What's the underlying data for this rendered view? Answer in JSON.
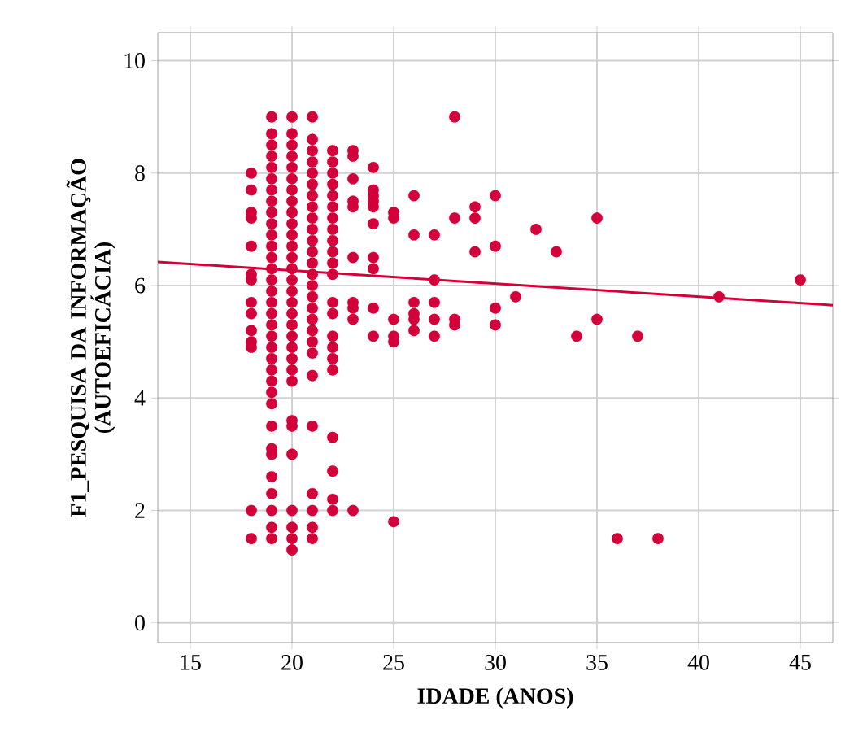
{
  "chart_data": {
    "type": "scatter",
    "xlabel": "IDADE (ANOS)",
    "ylabel": "F1_PESQUISA DA INFORMAÇÃO (AUTOEFICÁCIA)",
    "xlim": [
      13.4,
      46.6
    ],
    "ylim": [
      -0.35,
      10.5
    ],
    "xticks": [
      15,
      20,
      25,
      30,
      35,
      40,
      45
    ],
    "yticks": [
      0,
      2,
      4,
      6,
      8,
      10
    ],
    "grid": true,
    "series": [
      {
        "color": "#d4003a",
        "marker": "circle",
        "x": [
          18,
          18,
          18,
          18,
          18,
          18,
          18,
          18,
          18,
          18,
          18,
          18,
          18,
          18,
          19,
          19,
          19,
          19,
          19,
          19,
          19,
          19,
          19,
          19,
          19,
          19,
          19,
          19,
          19,
          19,
          19,
          19,
          19,
          19,
          19,
          19,
          19,
          19,
          19,
          19,
          19,
          19,
          19,
          19,
          19,
          19,
          19,
          19,
          20,
          20,
          20,
          20,
          20,
          20,
          20,
          20,
          20,
          20,
          20,
          20,
          20,
          20,
          20,
          20,
          20,
          20,
          20,
          20,
          20,
          20,
          20,
          20,
          20,
          20,
          20,
          20,
          20,
          20,
          20,
          21,
          21,
          21,
          21,
          21,
          21,
          21,
          21,
          21,
          21,
          21,
          21,
          21,
          21,
          21,
          21,
          21,
          21,
          21,
          21,
          21,
          21,
          21,
          21,
          21,
          21,
          21,
          22,
          22,
          22,
          22,
          22,
          22,
          22,
          22,
          22,
          22,
          22,
          22,
          22,
          22,
          22,
          22,
          22,
          22,
          22,
          22,
          22,
          22,
          23,
          23,
          23,
          23,
          23,
          23,
          23,
          23,
          23,
          23,
          24,
          24,
          24,
          24,
          24,
          24,
          24,
          24,
          24,
          24,
          25,
          25,
          25,
          25,
          25,
          25,
          26,
          26,
          26,
          26,
          26,
          26,
          27,
          27,
          27,
          27,
          27,
          28,
          28,
          28,
          28,
          29,
          29,
          29,
          30,
          30,
          30,
          30,
          31,
          32,
          33,
          34,
          35,
          35,
          36,
          37,
          38,
          41,
          45
        ],
        "values": [
          8.0,
          7.7,
          7.3,
          7.2,
          6.7,
          6.2,
          6.1,
          5.7,
          5.5,
          5.2,
          5.0,
          4.9,
          2.0,
          1.5,
          9.0,
          8.7,
          8.5,
          8.3,
          8.1,
          7.9,
          7.7,
          7.5,
          7.3,
          7.1,
          6.9,
          6.7,
          6.5,
          6.3,
          6.1,
          5.9,
          5.7,
          5.5,
          5.3,
          5.1,
          4.9,
          4.7,
          4.5,
          4.3,
          4.1,
          3.9,
          3.5,
          3.1,
          3.0,
          2.6,
          2.3,
          2.0,
          1.7,
          1.5,
          9.0,
          8.7,
          8.5,
          8.3,
          8.1,
          7.9,
          7.7,
          7.5,
          7.3,
          7.1,
          6.9,
          6.7,
          6.5,
          6.3,
          6.1,
          5.9,
          5.7,
          5.5,
          5.3,
          5.1,
          4.9,
          4.7,
          4.5,
          4.3,
          3.6,
          3.5,
          3.0,
          2.0,
          1.7,
          1.5,
          1.3,
          9.0,
          8.6,
          8.4,
          8.2,
          8.0,
          7.8,
          7.6,
          7.4,
          7.2,
          7.0,
          6.8,
          6.6,
          6.4,
          6.2,
          6.0,
          5.8,
          5.6,
          5.4,
          5.2,
          5.0,
          4.8,
          4.4,
          3.5,
          2.3,
          2.0,
          1.7,
          1.5,
          8.4,
          8.2,
          8.0,
          7.8,
          7.6,
          7.4,
          7.2,
          7.0,
          6.8,
          6.6,
          6.4,
          6.2,
          5.7,
          5.5,
          5.1,
          4.9,
          4.7,
          4.5,
          3.3,
          2.7,
          2.2,
          2.0,
          8.4,
          8.3,
          7.9,
          7.5,
          7.4,
          6.5,
          5.7,
          5.6,
          5.4,
          2.0,
          8.1,
          7.7,
          7.6,
          7.5,
          7.4,
          7.1,
          6.5,
          6.3,
          5.6,
          5.1,
          7.3,
          7.2,
          5.4,
          5.1,
          5.0,
          1.8,
          7.6,
          6.9,
          5.7,
          5.5,
          5.4,
          5.2,
          6.9,
          6.1,
          5.7,
          5.4,
          5.1,
          9.0,
          7.2,
          5.4,
          5.3,
          7.4,
          7.2,
          6.6,
          7.6,
          6.7,
          5.6,
          5.3,
          5.8,
          7.0,
          6.6,
          5.1,
          7.2,
          5.4,
          1.5,
          5.1,
          1.5,
          5.8,
          6.1
        ]
      },
      {
        "type": "line",
        "marker": "none",
        "color": "#d4003a",
        "x": [
          13.4,
          46.6
        ],
        "values": [
          6.42,
          5.65
        ]
      }
    ]
  }
}
